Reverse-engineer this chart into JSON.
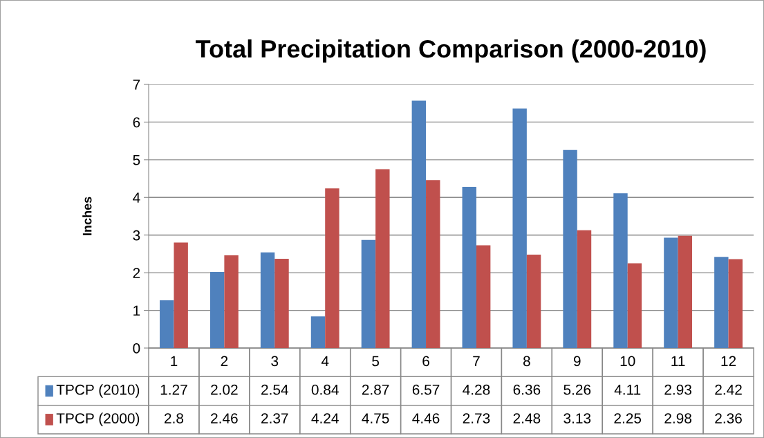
{
  "chart_data": {
    "type": "bar",
    "title": "Total Precipitation Comparison (2000-2010)",
    "ylabel": "Inches",
    "categories": [
      "1",
      "2",
      "3",
      "4",
      "5",
      "6",
      "7",
      "8",
      "9",
      "10",
      "11",
      "12"
    ],
    "series": [
      {
        "name": "TPCP (2010)",
        "color": "#4f81bd",
        "values": [
          1.27,
          2.02,
          2.54,
          0.84,
          2.87,
          6.57,
          4.28,
          6.36,
          5.26,
          4.11,
          2.93,
          2.42
        ]
      },
      {
        "name": "TPCP (2000)",
        "color": "#c0504d",
        "values": [
          2.8,
          2.46,
          2.37,
          4.24,
          4.75,
          4.46,
          2.73,
          2.48,
          3.13,
          2.25,
          2.98,
          2.36
        ]
      }
    ],
    "ylim": [
      0,
      7
    ],
    "yticks": [
      0,
      1,
      2,
      3,
      4,
      5,
      6,
      7
    ],
    "grid": "y",
    "legend": "bottom",
    "data_labels": true
  }
}
